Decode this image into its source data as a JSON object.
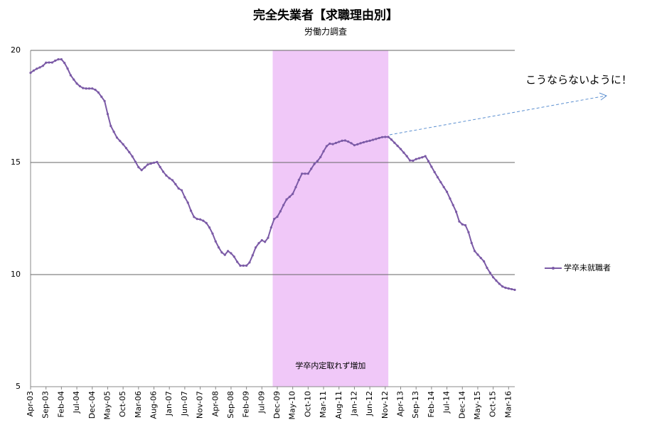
{
  "chart_data": {
    "type": "line",
    "title": "完全失業者【求職理由別】",
    "subtitle": "労働力調査",
    "categories": [
      "Apr-03",
      null,
      null,
      null,
      null,
      "Sep-03",
      null,
      null,
      null,
      null,
      "Feb-04",
      null,
      null,
      null,
      null,
      "Jul-04",
      null,
      null,
      null,
      null,
      "Dec-04",
      null,
      null,
      null,
      null,
      "May-05",
      null,
      null,
      null,
      null,
      "Oct-05",
      null,
      null,
      null,
      null,
      "Mar-06",
      null,
      null,
      null,
      null,
      "Aug-06",
      null,
      null,
      null,
      null,
      "Jan-07",
      null,
      null,
      null,
      null,
      "Jun-07",
      null,
      null,
      null,
      null,
      "Nov-07",
      null,
      null,
      null,
      null,
      "Apr-08",
      null,
      null,
      null,
      null,
      "Sep-08",
      null,
      null,
      null,
      null,
      "Feb-09",
      null,
      null,
      null,
      null,
      "Jul-09",
      null,
      null,
      null,
      null,
      "Dec-09",
      null,
      null,
      null,
      null,
      "May-10",
      null,
      null,
      null,
      null,
      "Oct-10",
      null,
      null,
      null,
      null,
      "Mar-11",
      null,
      null,
      null,
      null,
      "Aug-11",
      null,
      null,
      null,
      null,
      "Jan-12",
      null,
      null,
      null,
      null,
      "Jun-12",
      null,
      null,
      null,
      null,
      "Nov-12",
      null,
      null,
      null,
      null,
      "Apr-13",
      null,
      null,
      null,
      null,
      "Sep-13",
      null,
      null,
      null,
      null,
      "Feb-14",
      null,
      null,
      null,
      null,
      "Jul-14",
      null,
      null,
      null,
      null,
      "Dec-14",
      null,
      null,
      null,
      null,
      "May-15",
      null,
      null,
      null,
      null,
      "Oct-15",
      null,
      null,
      null,
      null,
      "Mar-16",
      null,
      null
    ],
    "series": [
      {
        "name": "学卒未就職者",
        "color": "#7b5aa6",
        "values": [
          19.0,
          19.1,
          19.18,
          19.24,
          19.31,
          19.45,
          19.46,
          19.46,
          19.54,
          19.6,
          19.6,
          19.44,
          19.19,
          18.89,
          18.7,
          18.52,
          18.4,
          18.32,
          18.3,
          18.3,
          18.3,
          18.24,
          18.12,
          17.93,
          17.74,
          17.16,
          16.63,
          16.37,
          16.11,
          15.96,
          15.81,
          15.64,
          15.46,
          15.27,
          15.03,
          14.79,
          14.66,
          14.78,
          14.91,
          14.95,
          14.99,
          15.02,
          14.8,
          14.59,
          14.42,
          14.3,
          14.21,
          14.03,
          13.84,
          13.76,
          13.45,
          13.21,
          12.85,
          12.57,
          12.48,
          12.46,
          12.4,
          12.3,
          12.1,
          11.83,
          11.48,
          11.21,
          10.99,
          10.88,
          11.05,
          10.95,
          10.8,
          10.57,
          10.4,
          10.4,
          10.4,
          10.54,
          10.86,
          11.21,
          11.4,
          11.53,
          11.46,
          11.64,
          12.1,
          12.48,
          12.58,
          12.82,
          13.1,
          13.35,
          13.47,
          13.6,
          13.9,
          14.22,
          14.5,
          14.5,
          14.5,
          14.72,
          14.93,
          15.06,
          15.24,
          15.5,
          15.73,
          15.84,
          15.82,
          15.87,
          15.92,
          15.97,
          15.98,
          15.93,
          15.86,
          15.77,
          15.81,
          15.86,
          15.9,
          15.94,
          15.97,
          16.01,
          16.05,
          16.09,
          16.13,
          16.14,
          16.14,
          16.02,
          15.88,
          15.74,
          15.6,
          15.44,
          15.28,
          15.09,
          15.08,
          15.15,
          15.19,
          15.23,
          15.28,
          15.06,
          14.81,
          14.57,
          14.34,
          14.12,
          13.9,
          13.69,
          13.39,
          13.1,
          12.8,
          12.37,
          12.24,
          12.2,
          11.89,
          11.41,
          11.05,
          10.89,
          10.74,
          10.59,
          10.3,
          10.08,
          9.88,
          9.73,
          9.59,
          9.47,
          9.41,
          9.38,
          9.35,
          9.32
        ]
      }
    ],
    "ylim": [
      5,
      20
    ],
    "yticks": [
      5,
      10,
      15,
      20
    ],
    "grid": true,
    "legend": "right",
    "shade": {
      "start": 78.5,
      "end": 116,
      "color": "#f0c8f8",
      "label": "学卒内定取れず増加"
    },
    "annotation": "こうならないように！"
  }
}
